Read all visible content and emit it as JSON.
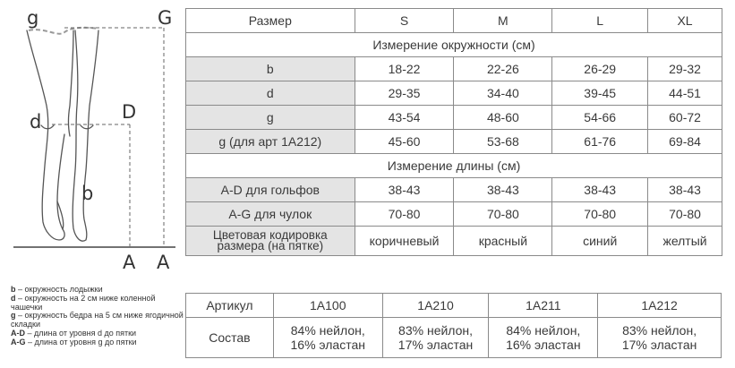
{
  "diagram": {
    "label_g_left": "g",
    "label_g_right": "G",
    "label_d": "d",
    "label_D": "D",
    "label_b": "b",
    "label_A_left": "A",
    "label_A_right": "A"
  },
  "size_table": {
    "header": [
      "Размер",
      "S",
      "M",
      "L",
      "XL"
    ],
    "circumference_title": "Измерение окружности (см)",
    "circumference_rows": [
      {
        "label": "b",
        "values": [
          "18-22",
          "22-26",
          "26-29",
          "29-32"
        ]
      },
      {
        "label": "d",
        "values": [
          "29-35",
          "34-40",
          "39-45",
          "44-51"
        ]
      },
      {
        "label": "g",
        "values": [
          "43-54",
          "48-60",
          "54-66",
          "60-72"
        ]
      },
      {
        "label": "g (для арт 1A212)",
        "values": [
          "45-60",
          "53-68",
          "61-76",
          "69-84"
        ]
      }
    ],
    "length_title": "Измерение длины (см)",
    "length_rows": [
      {
        "label": "A-D для гольфов",
        "values": [
          "38-43",
          "38-43",
          "38-43",
          "38-43"
        ]
      },
      {
        "label": "A-G для чулок",
        "values": [
          "70-80",
          "70-80",
          "70-80",
          "70-80"
        ]
      }
    ],
    "color_row": {
      "label_line1": "Цветовая кодировка",
      "label_line2": "размера (на пятке)",
      "values": [
        "коричневый",
        "красный",
        "синий",
        "желтый"
      ]
    }
  },
  "legend": [
    {
      "key": "b",
      "text": " – окружность лодыжки"
    },
    {
      "key": "d",
      "text": " – окружность на 2 см ниже коленной чашечки"
    },
    {
      "key": "g",
      "text": " – окружность бедра на 5 см ниже ягодичной складки"
    },
    {
      "key": "A-D",
      "text": " – длина от уровня d до пятки"
    },
    {
      "key": "A-G",
      "text": " – длина от уровня g до пятки"
    }
  ],
  "article_table": {
    "row1_label": "Артикул",
    "articles": [
      "1A100",
      "1A210",
      "1A211",
      "1A212"
    ],
    "row2_label": "Состав",
    "compositions": [
      {
        "line1": "84% нейлон,",
        "line2": "16% эластан"
      },
      {
        "line1": "83% нейлон,",
        "line2": "17% эластан"
      },
      {
        "line1": "84% нейлон,",
        "line2": "16% эластан"
      },
      {
        "line1": "83% нейлон,",
        "line2": "17% эластан"
      }
    ]
  }
}
